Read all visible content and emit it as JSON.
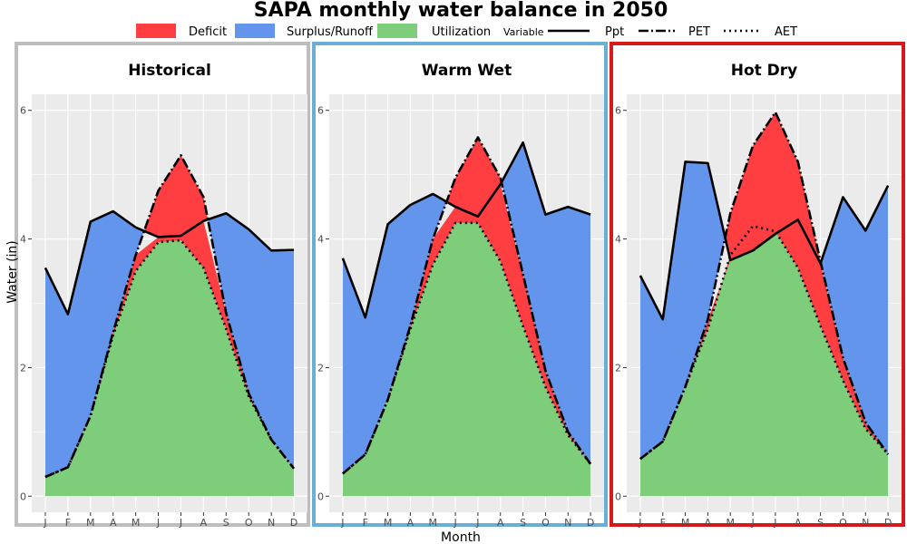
{
  "chart_data": {
    "type": "area",
    "title": "SAPA monthly water balance in 2050",
    "xlabel": "Month",
    "ylabel": "Water (in)",
    "ylim": [
      -0.25,
      6.25
    ],
    "yticks": [
      0,
      2,
      4,
      6
    ],
    "categories": [
      "J",
      "F",
      "M",
      "A",
      "M",
      "J",
      "J",
      "A",
      "S",
      "O",
      "N",
      "D"
    ],
    "legend": {
      "fill_entries": [
        {
          "label": "Deficit",
          "color": "#FF3E42"
        },
        {
          "label": "Surplus/Runoff",
          "color": "#6495ED"
        },
        {
          "label": "Utilization",
          "color": "#7ECD7B"
        }
      ],
      "line_title": "Variable",
      "line_entries": [
        {
          "label": "Ppt",
          "dash": "solid"
        },
        {
          "label": "PET",
          "dash": "longdash-dot"
        },
        {
          "label": "AET",
          "dash": "dotted"
        }
      ]
    },
    "panels": [
      {
        "name": "Historical",
        "border_color": "#BEBEBE",
        "series": [
          {
            "name": "Ppt",
            "values": [
              3.55,
              2.83,
              4.27,
              4.43,
              4.18,
              4.03,
              4.05,
              4.28,
              4.4,
              4.15,
              3.82,
              3.83
            ]
          },
          {
            "name": "PET",
            "values": [
              0.3,
              0.45,
              1.25,
              2.55,
              3.75,
              4.75,
              5.3,
              4.65,
              2.85,
              1.6,
              0.88,
              0.43
            ]
          },
          {
            "name": "AET",
            "values": [
              0.3,
              0.45,
              1.25,
              2.5,
              3.5,
              3.95,
              3.98,
              3.55,
              2.6,
              1.55,
              0.88,
              0.43
            ]
          }
        ]
      },
      {
        "name": "Warm Wet",
        "border_color": "#6BAED6",
        "series": [
          {
            "name": "Ppt",
            "values": [
              3.7,
              2.78,
              4.23,
              4.53,
              4.7,
              4.5,
              4.35,
              4.85,
              5.5,
              4.38,
              4.5,
              4.38
            ]
          },
          {
            "name": "PET",
            "values": [
              0.35,
              0.65,
              1.5,
              2.65,
              4.0,
              4.95,
              5.58,
              4.95,
              3.45,
              1.95,
              1.0,
              0.5
            ]
          },
          {
            "name": "AET",
            "values": [
              0.35,
              0.65,
              1.5,
              2.6,
              3.6,
              4.25,
              4.25,
              3.65,
              2.65,
              1.7,
              0.95,
              0.5
            ]
          }
        ]
      },
      {
        "name": "Hot Dry",
        "border_color": "#D7191C",
        "series": [
          {
            "name": "Ppt",
            "values": [
              3.43,
              2.75,
              5.2,
              5.18,
              3.67,
              3.82,
              4.08,
              4.3,
              3.62,
              4.65,
              4.13,
              4.83
            ]
          },
          {
            "name": "PET",
            "values": [
              0.58,
              0.85,
              1.7,
              2.75,
              4.4,
              5.45,
              5.97,
              5.2,
              3.65,
              2.15,
              1.15,
              0.65
            ]
          },
          {
            "name": "AET",
            "values": [
              0.58,
              0.85,
              1.7,
              2.6,
              3.75,
              4.2,
              4.12,
              3.55,
              2.65,
              1.8,
              1.05,
              0.65
            ]
          }
        ]
      }
    ]
  }
}
